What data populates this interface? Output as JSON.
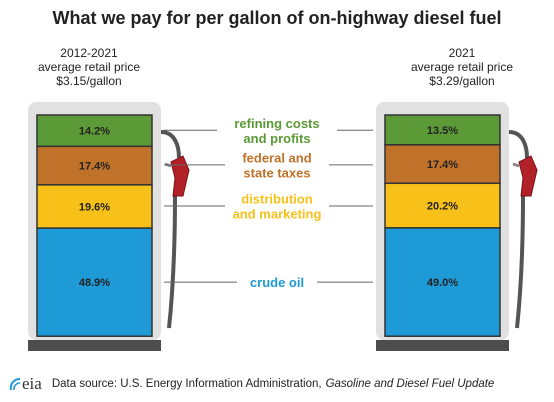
{
  "title": "What we pay for per gallon of on-highway diesel fuel",
  "left_header": {
    "line1": "2012-2021",
    "line2": "average retail price",
    "line3": "$3.15/gallon"
  },
  "right_header": {
    "line1": "2021",
    "line2": "average retail price",
    "line3": "$3.29/gallon"
  },
  "chart_data": {
    "type": "bar",
    "title": "What we pay for per gallon of on-highway diesel fuel",
    "categories": [
      "2012-2021",
      "2021"
    ],
    "stacked": true,
    "series": [
      {
        "name": "refining costs and profits",
        "label_lines": [
          "refining costs",
          "and profits"
        ],
        "color": "#5b9a37",
        "values": [
          14.2,
          13.5
        ],
        "labels": [
          "14.2%",
          "13.5%"
        ]
      },
      {
        "name": "federal and state taxes",
        "label_lines": [
          "federal and",
          "state taxes"
        ],
        "color": "#c0722a",
        "values": [
          17.4,
          17.4
        ],
        "labels": [
          "17.4%",
          "17.4%"
        ]
      },
      {
        "name": "distribution and marketing",
        "label_lines": [
          "distribution",
          "and marketing"
        ],
        "color": "#f7c11a",
        "values": [
          19.6,
          20.2
        ],
        "labels": [
          "19.6%",
          "20.2%"
        ]
      },
      {
        "name": "crude oil",
        "label_lines": [
          "crude oil"
        ],
        "color": "#1e9ad6",
        "values": [
          48.9,
          49.0
        ],
        "labels": [
          "48.9%",
          "49.0%"
        ]
      }
    ],
    "label_colors": [
      "#5b9a37",
      "#c0722a",
      "#f7c11a",
      "#1e9ad6"
    ],
    "units": "percent"
  },
  "footer": {
    "logo_text": "eia",
    "source_prefix": "Data source: U.S. Energy Information Administration,",
    "source_title": "Gasoline and Diesel Fuel Update"
  }
}
